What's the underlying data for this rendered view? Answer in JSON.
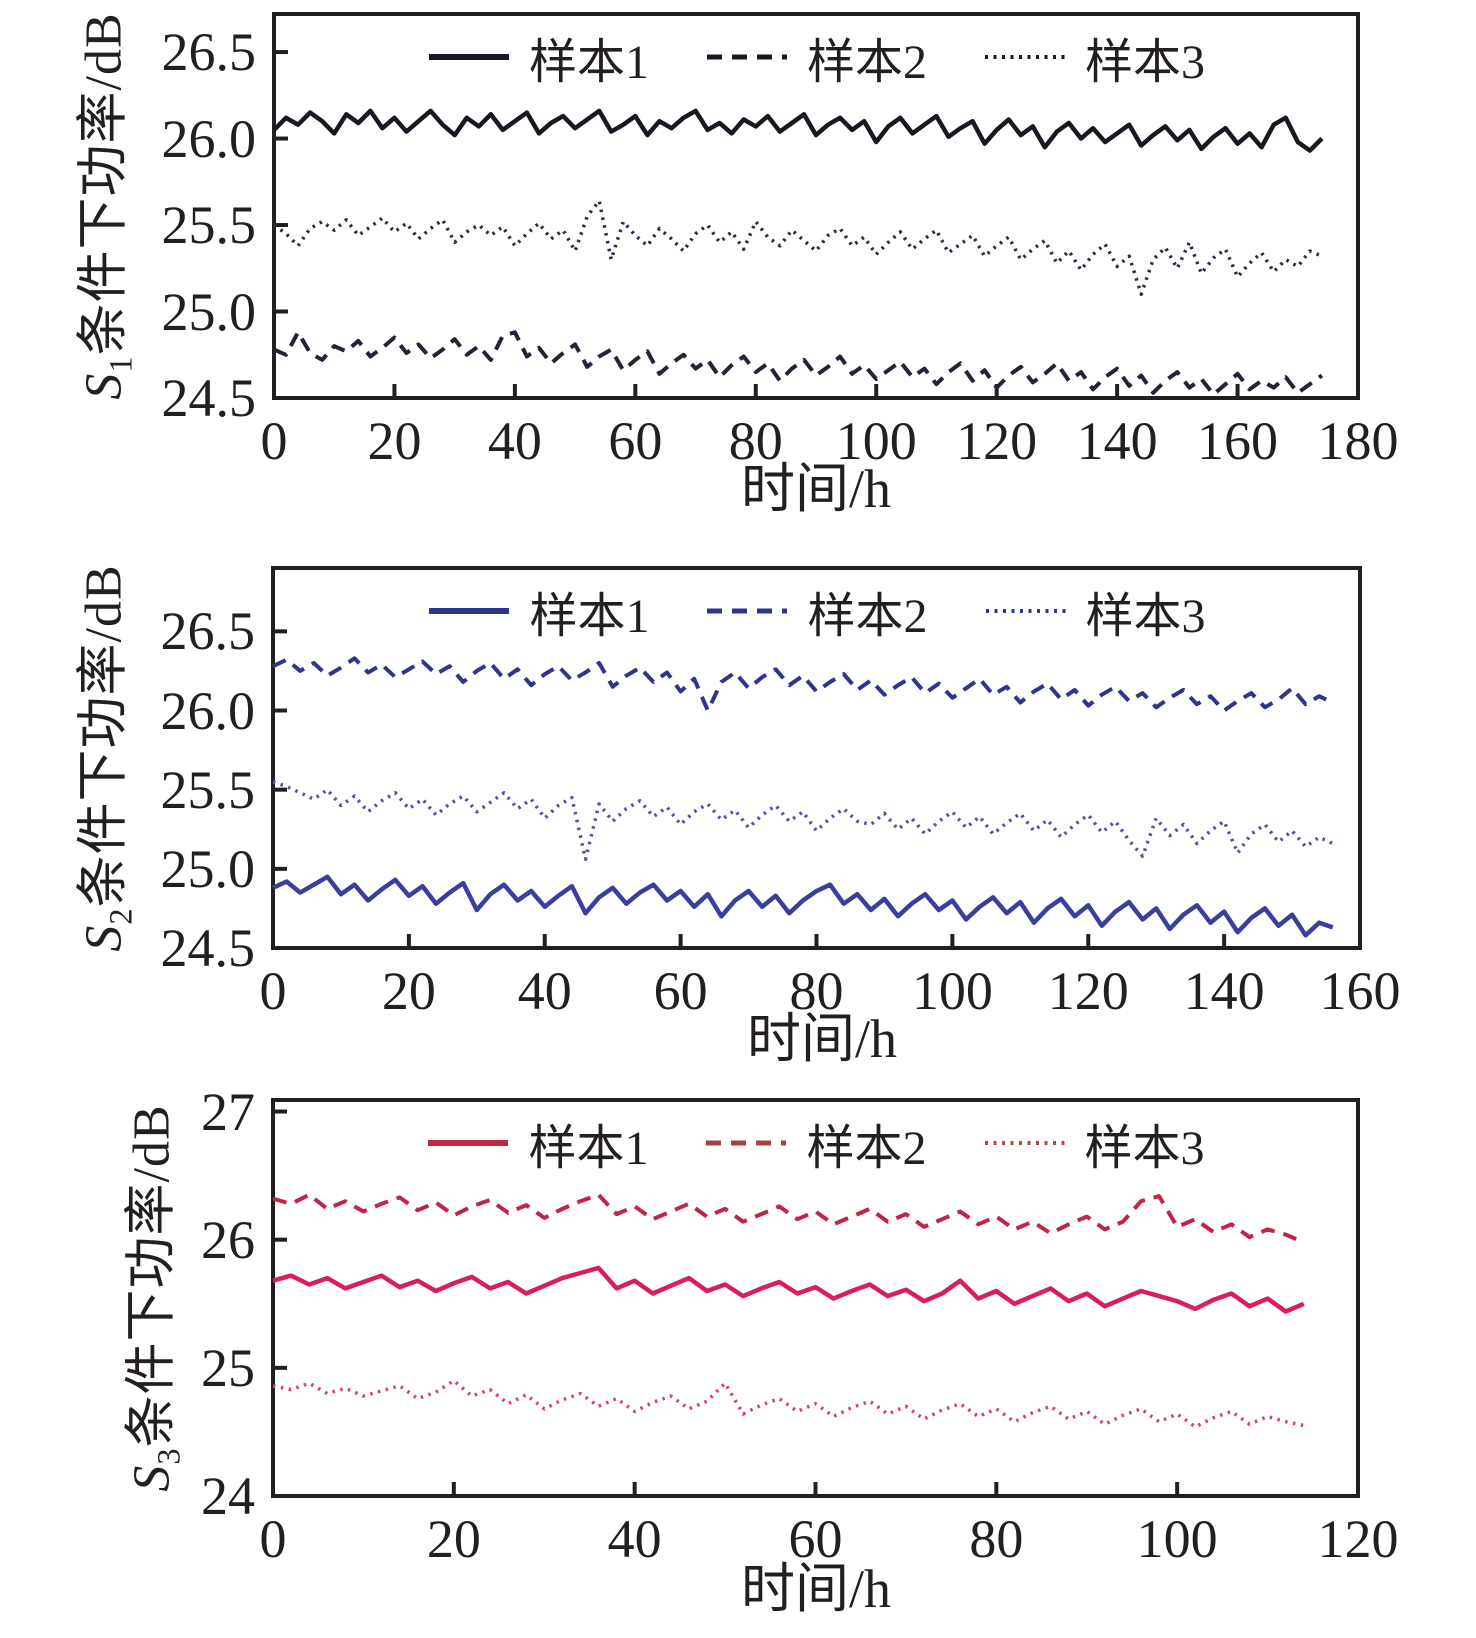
{
  "figure": {
    "background": "#ffffff",
    "axis_color": "#231f20",
    "text_color": "#231f20"
  },
  "chart_data": [
    {
      "type": "line",
      "ylabel": {
        "var": "S",
        "sub": "1",
        "rest": "条件下功率/dB"
      },
      "xlabel": "时间/h",
      "xlim": [
        0,
        180
      ],
      "ylim": [
        24.5,
        26.72
      ],
      "x_ticks": [
        "0",
        "20",
        "40",
        "60",
        "80",
        "100",
        "120",
        "140",
        "160",
        "180"
      ],
      "y_ticks": [
        "26.5",
        "26.0",
        "25.5",
        "25.0",
        "24.5"
      ],
      "grid": false,
      "legend_position": "top-center",
      "x_step": 2,
      "series": [
        {
          "name": "样本1",
          "style": "solid",
          "color": "#1b1722",
          "legend_color": "#1b1722",
          "values": [
            26.05,
            26.12,
            26.08,
            26.15,
            26.1,
            26.03,
            26.14,
            26.09,
            26.16,
            26.06,
            26.12,
            26.04,
            26.1,
            26.16,
            26.08,
            26.02,
            26.12,
            26.07,
            26.14,
            26.05,
            26.1,
            26.15,
            26.03,
            26.09,
            26.13,
            26.06,
            26.11,
            26.16,
            26.04,
            26.08,
            26.13,
            26.02,
            26.1,
            26.06,
            26.12,
            26.16,
            26.05,
            26.09,
            26.03,
            26.11,
            26.07,
            26.13,
            26.04,
            26.09,
            26.14,
            26.02,
            26.08,
            26.12,
            26.05,
            26.1,
            25.98,
            26.07,
            26.12,
            26.03,
            26.08,
            26.13,
            26.01,
            26.06,
            26.1,
            25.97,
            26.05,
            26.11,
            26.02,
            26.07,
            25.95,
            26.04,
            26.09,
            26.0,
            26.06,
            25.98,
            26.03,
            26.08,
            25.96,
            26.02,
            26.07,
            25.99,
            26.05,
            25.94,
            26.01,
            26.06,
            25.97,
            26.03,
            25.95,
            26.08,
            26.12,
            25.98,
            25.93,
            26.0
          ]
        },
        {
          "name": "样本2",
          "style": "dashed",
          "color": "#272138",
          "legend_color": "#1b1722",
          "values": [
            24.78,
            24.75,
            24.88,
            24.76,
            24.72,
            24.8,
            24.77,
            24.83,
            24.74,
            24.79,
            24.85,
            24.76,
            24.81,
            24.73,
            24.78,
            24.84,
            24.75,
            24.8,
            24.72,
            24.86,
            24.88,
            24.74,
            24.79,
            24.7,
            24.76,
            24.81,
            24.68,
            24.74,
            24.78,
            24.66,
            24.72,
            24.77,
            24.64,
            24.7,
            24.75,
            24.67,
            24.72,
            24.62,
            24.69,
            24.74,
            24.65,
            24.7,
            24.6,
            24.67,
            24.72,
            24.63,
            24.68,
            24.74,
            24.64,
            24.69,
            24.61,
            24.66,
            24.71,
            24.62,
            24.67,
            24.58,
            24.65,
            24.7,
            24.6,
            24.66,
            24.56,
            24.63,
            24.68,
            24.59,
            24.64,
            24.7,
            24.6,
            24.65,
            24.55,
            24.62,
            24.67,
            24.57,
            24.63,
            24.53,
            24.6,
            24.65,
            24.56,
            24.61,
            24.52,
            24.58,
            24.64,
            24.55,
            24.6,
            24.56,
            24.62,
            24.53,
            24.58,
            24.63
          ]
        },
        {
          "name": "样本3",
          "style": "dotted",
          "color": "#2f2a45",
          "legend_color": "#1b1722",
          "values": [
            25.5,
            25.45,
            25.38,
            25.48,
            25.52,
            25.47,
            25.53,
            25.44,
            25.49,
            25.54,
            25.46,
            25.51,
            25.42,
            25.48,
            25.53,
            25.4,
            25.46,
            25.5,
            25.44,
            25.49,
            25.38,
            25.45,
            25.51,
            25.42,
            25.47,
            25.35,
            25.55,
            25.64,
            25.3,
            25.52,
            25.44,
            25.38,
            25.48,
            25.42,
            25.35,
            25.45,
            25.5,
            25.4,
            25.46,
            25.36,
            25.52,
            25.43,
            25.38,
            25.47,
            25.41,
            25.35,
            25.44,
            25.48,
            25.38,
            25.43,
            25.33,
            25.4,
            25.46,
            25.36,
            25.42,
            25.47,
            25.34,
            25.39,
            25.44,
            25.32,
            25.38,
            25.43,
            25.3,
            25.36,
            25.41,
            25.28,
            25.35,
            25.24,
            25.33,
            25.39,
            25.26,
            25.32,
            25.1,
            25.3,
            25.37,
            25.25,
            25.4,
            25.22,
            25.31,
            25.36,
            25.2,
            25.28,
            25.34,
            25.23,
            25.3,
            25.26,
            25.35,
            25.32
          ]
        }
      ]
    },
    {
      "type": "line",
      "ylabel": {
        "var": "S",
        "sub": "2",
        "rest": "条件下功率/dB"
      },
      "xlabel": "时间/h",
      "xlim": [
        0,
        160
      ],
      "ylim": [
        24.5,
        26.9
      ],
      "x_ticks": [
        "0",
        "20",
        "40",
        "60",
        "80",
        "100",
        "120",
        "140",
        "160"
      ],
      "y_ticks": [
        "26.5",
        "26.0",
        "25.5",
        "25.0",
        "24.5"
      ],
      "grid": false,
      "legend_position": "top-center",
      "x_step": 2,
      "series": [
        {
          "name": "样本1",
          "style": "solid",
          "color": "#3b3f9c",
          "legend_color": "#2e3590",
          "values": [
            24.88,
            24.92,
            24.85,
            24.9,
            24.95,
            24.84,
            24.9,
            24.8,
            24.87,
            24.93,
            24.83,
            24.89,
            24.78,
            24.85,
            24.91,
            24.74,
            24.84,
            24.9,
            24.8,
            24.86,
            24.76,
            24.83,
            24.89,
            24.72,
            24.82,
            24.88,
            24.78,
            24.85,
            24.9,
            24.8,
            24.86,
            24.76,
            24.84,
            24.7,
            24.8,
            24.86,
            24.76,
            24.83,
            24.72,
            24.8,
            24.86,
            24.9,
            24.78,
            24.84,
            24.74,
            24.81,
            24.7,
            24.78,
            24.84,
            24.74,
            24.8,
            24.68,
            24.76,
            24.82,
            24.72,
            24.79,
            24.66,
            24.75,
            24.81,
            24.7,
            24.77,
            24.64,
            24.73,
            24.79,
            24.68,
            24.75,
            24.62,
            24.71,
            24.77,
            24.66,
            24.73,
            24.6,
            24.69,
            24.75,
            24.64,
            24.71,
            24.58,
            24.66,
            24.63
          ]
        },
        {
          "name": "样本2",
          "style": "dashed",
          "color": "#2f358e",
          "legend_color": "#2e3590",
          "values": [
            26.28,
            26.32,
            26.25,
            26.3,
            26.22,
            26.27,
            26.33,
            26.24,
            26.29,
            26.21,
            26.26,
            26.31,
            26.23,
            26.28,
            26.18,
            26.25,
            26.3,
            26.2,
            26.26,
            26.16,
            26.23,
            26.28,
            26.19,
            26.24,
            26.3,
            26.15,
            26.22,
            26.27,
            26.18,
            26.24,
            26.12,
            26.2,
            26.0,
            26.18,
            26.24,
            26.14,
            26.21,
            26.26,
            26.16,
            26.22,
            26.12,
            26.18,
            26.23,
            26.13,
            26.19,
            26.1,
            26.16,
            26.21,
            26.11,
            26.17,
            26.08,
            26.14,
            26.2,
            26.1,
            26.15,
            26.05,
            26.12,
            26.17,
            26.07,
            26.13,
            26.03,
            26.1,
            26.15,
            26.06,
            26.11,
            26.02,
            26.08,
            26.13,
            26.04,
            26.09,
            26.0,
            26.06,
            26.11,
            26.02,
            26.07,
            26.14,
            26.04,
            26.09,
            26.05
          ]
        },
        {
          "name": "样本3",
          "style": "dotted",
          "color": "#55519f",
          "legend_color": "#2e3590",
          "values": [
            25.55,
            25.52,
            25.48,
            25.44,
            25.5,
            25.4,
            25.46,
            25.36,
            25.43,
            25.48,
            25.38,
            25.44,
            25.34,
            25.41,
            25.46,
            25.36,
            25.42,
            25.48,
            25.38,
            25.44,
            25.32,
            25.4,
            25.45,
            25.06,
            25.41,
            25.3,
            25.38,
            25.43,
            25.33,
            25.39,
            25.28,
            25.36,
            25.41,
            25.31,
            25.37,
            25.26,
            25.34,
            25.4,
            25.3,
            25.36,
            25.24,
            25.32,
            25.38,
            25.3,
            25.28,
            25.35,
            25.25,
            25.32,
            25.22,
            25.3,
            25.36,
            25.26,
            25.33,
            25.22,
            25.29,
            25.35,
            25.24,
            25.31,
            25.2,
            25.28,
            25.34,
            25.23,
            25.3,
            25.18,
            25.08,
            25.32,
            25.21,
            25.28,
            25.16,
            25.24,
            25.3,
            25.1,
            25.22,
            25.28,
            25.17,
            25.24,
            25.14,
            25.2,
            25.16
          ]
        }
      ]
    },
    {
      "type": "line",
      "ylabel": {
        "var": "S",
        "sub": "3",
        "rest": "条件下功率/dB"
      },
      "xlabel": "时间/h",
      "xlim": [
        0,
        120
      ],
      "ylim": [
        24,
        27.09
      ],
      "x_ticks": [
        "0",
        "20",
        "40",
        "60",
        "80",
        "100",
        "120"
      ],
      "y_ticks": [
        "27",
        "26",
        "25",
        "24"
      ],
      "grid": false,
      "legend_position": "top-center",
      "x_step": 2,
      "series": [
        {
          "name": "样本1",
          "style": "solid",
          "color": "#d81e5f",
          "legend_color": "#bb2c44",
          "values": [
            25.68,
            25.72,
            25.65,
            25.7,
            25.62,
            25.67,
            25.72,
            25.63,
            25.68,
            25.6,
            25.66,
            25.71,
            25.62,
            25.67,
            25.58,
            25.64,
            25.7,
            25.74,
            25.78,
            25.62,
            25.68,
            25.58,
            25.64,
            25.7,
            25.6,
            25.65,
            25.56,
            25.62,
            25.67,
            25.58,
            25.63,
            25.54,
            25.6,
            25.65,
            25.56,
            25.61,
            25.52,
            25.58,
            25.68,
            25.54,
            25.6,
            25.5,
            25.56,
            25.62,
            25.52,
            25.58,
            25.48,
            25.54,
            25.6,
            25.56,
            25.52,
            25.46,
            25.53,
            25.58,
            25.48,
            25.54,
            25.44,
            25.5
          ]
        },
        {
          "name": "样本2",
          "style": "dashed",
          "color": "#c12446",
          "legend_color": "#a8403f",
          "values": [
            26.32,
            26.28,
            26.35,
            26.24,
            26.3,
            26.22,
            26.28,
            26.33,
            26.23,
            26.29,
            26.19,
            26.26,
            26.31,
            26.21,
            26.27,
            26.17,
            26.24,
            26.3,
            26.35,
            26.2,
            26.26,
            26.16,
            26.22,
            26.28,
            26.18,
            26.24,
            26.14,
            26.2,
            26.26,
            26.16,
            26.22,
            26.12,
            26.18,
            26.24,
            26.14,
            26.2,
            26.1,
            26.16,
            26.22,
            26.12,
            26.18,
            26.08,
            26.14,
            26.05,
            26.12,
            26.18,
            26.08,
            26.14,
            26.3,
            26.34,
            26.1,
            26.16,
            26.06,
            26.12,
            26.02,
            26.08,
            26.04,
            25.98
          ]
        },
        {
          "name": "样本3",
          "style": "dotted",
          "color": "#d4417a",
          "legend_color": "#b04848",
          "values": [
            24.86,
            24.83,
            24.88,
            24.8,
            24.84,
            24.78,
            24.82,
            24.86,
            24.76,
            24.81,
            24.9,
            24.78,
            24.83,
            24.72,
            24.79,
            24.68,
            24.75,
            24.8,
            24.7,
            24.76,
            24.66,
            24.73,
            24.78,
            24.68,
            24.74,
            24.88,
            24.64,
            24.71,
            24.76,
            24.66,
            24.72,
            24.62,
            24.69,
            24.74,
            24.64,
            24.7,
            24.6,
            24.67,
            24.72,
            24.62,
            24.68,
            24.58,
            24.65,
            24.7,
            24.6,
            24.66,
            24.56,
            24.63,
            24.68,
            24.58,
            24.64,
            24.54,
            24.61,
            24.66,
            24.56,
            24.62,
            24.58,
            24.55
          ]
        }
      ]
    }
  ]
}
